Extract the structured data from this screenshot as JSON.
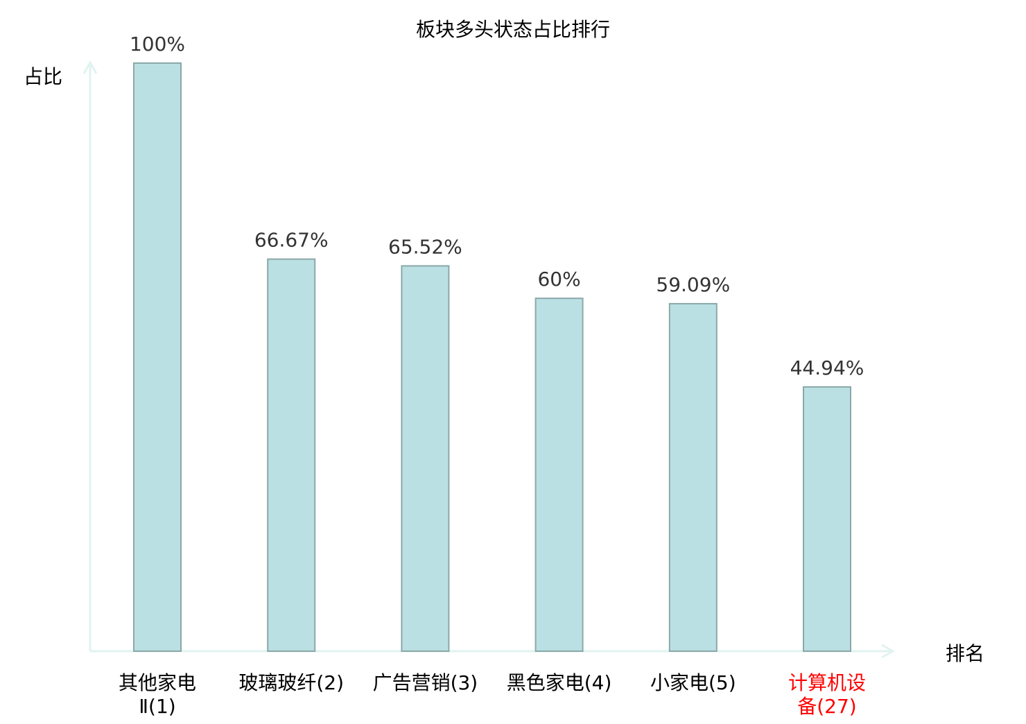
{
  "chart_data": {
    "type": "bar",
    "title": "板块多头状态占比排行",
    "xlabel": "排名",
    "ylabel": "占比",
    "ylim": [
      0,
      100
    ],
    "grid": false,
    "categories": [
      {
        "lines": [
          "其他家电",
          "Ⅱ(1)"
        ],
        "highlight": false
      },
      {
        "lines": [
          "玻璃玻纤(2)"
        ],
        "highlight": false
      },
      {
        "lines": [
          "广告营销(3)"
        ],
        "highlight": false
      },
      {
        "lines": [
          "黑色家电(4)"
        ],
        "highlight": false
      },
      {
        "lines": [
          "小家电(5)"
        ],
        "highlight": false
      },
      {
        "lines": [
          "计算机设",
          "备(27)"
        ],
        "highlight": true
      }
    ],
    "values": [
      100,
      66.67,
      65.52,
      60,
      59.09,
      44.94
    ],
    "labels": [
      "100%",
      "66.67%",
      "65.52%",
      "60%",
      "59.09%",
      "44.94%"
    ],
    "colors": {
      "bar_fill": "#bbe0e3",
      "bar_stroke": "#8aa8a8",
      "axis": "#e0f3f0",
      "highlight": "#ff0000",
      "text": "#333333"
    }
  }
}
